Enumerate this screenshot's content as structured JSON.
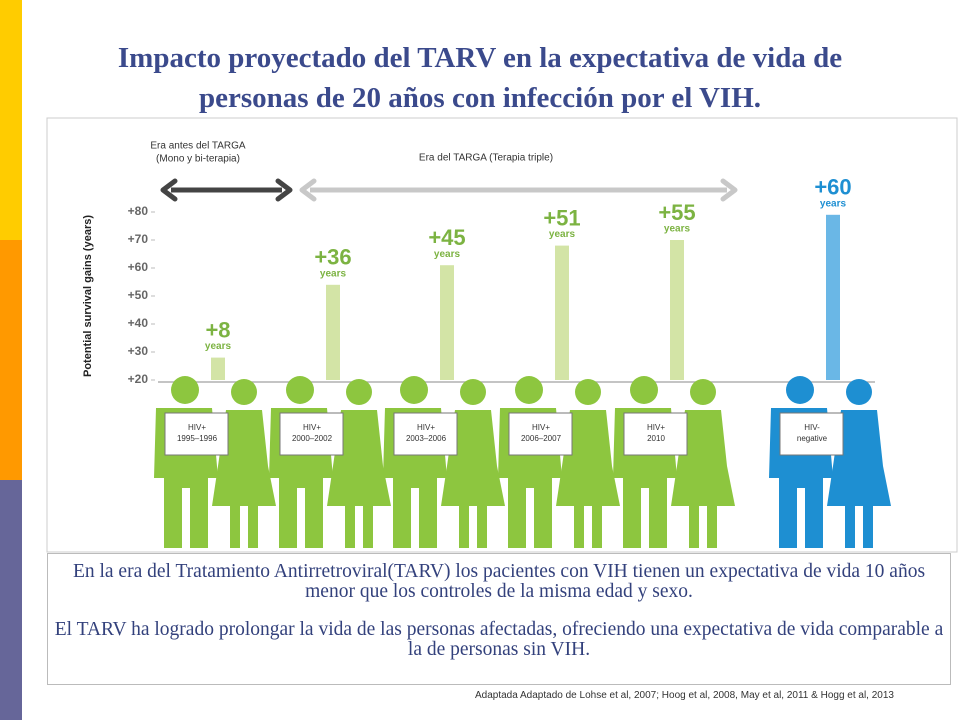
{
  "slide_title": [
    "Impacto proyectado del TARV en la expectativa de vida de",
    "personas de 20 años con infección por el VIH."
  ],
  "chart_data": {
    "type": "bar",
    "y_label": "Potential survival gains (years)",
    "eras": [
      {
        "label": [
          "Era antes del TARGA",
          "(Mono y bi-terapia)"
        ],
        "color": "#444444"
      },
      {
        "label": [
          "Era del TARGA (Terapia triple)"
        ],
        "color": "#c8c8c8"
      }
    ],
    "categories": [
      [
        "HIV+",
        "1995–1996"
      ],
      [
        "HIV+",
        "2000–2002"
      ],
      [
        "HIV+",
        "2003–2006"
      ],
      [
        "HIV+",
        "2006–2007"
      ],
      [
        "HIV+",
        "2010"
      ],
      [
        "HIV-",
        "negative"
      ]
    ],
    "values": [
      28,
      54,
      61,
      68,
      70,
      79
    ],
    "annotations": [
      [
        "+8",
        "years"
      ],
      [
        "+36",
        "years"
      ],
      [
        "+45",
        "years"
      ],
      [
        "+51",
        "years"
      ],
      [
        "+55",
        "years"
      ],
      [
        "+60",
        "years"
      ]
    ],
    "colors": [
      "#d3e4a6",
      "#d3e4a6",
      "#d3e4a6",
      "#d3e4a6",
      "#d3e4a6",
      "#6ab7e6"
    ],
    "figure_colors": [
      "#8dc63f",
      "#8dc63f",
      "#8dc63f",
      "#8dc63f",
      "#8dc63f",
      "#1e8fd2"
    ],
    "label_colors": [
      "#7cb342",
      "#7cb342",
      "#7cb342",
      "#7cb342",
      "#7cb342",
      "#1e8fd2"
    ],
    "ylim": [
      20,
      80
    ],
    "yticks": [
      {
        "value": 20,
        "label": "+20"
      },
      {
        "value": 30,
        "label": "+30"
      },
      {
        "value": 40,
        "label": "+40"
      },
      {
        "value": 50,
        "label": "+50"
      },
      {
        "value": 60,
        "label": "+60"
      },
      {
        "value": 70,
        "label": "+70"
      },
      {
        "value": 80,
        "label": "+80"
      }
    ],
    "grid": false
  },
  "notes": [
    "En la era del Tratamiento Antirretroviral(TARV) los pacientes con VIH tienen un expectativa de vida 10 años menor que los controles de la misma edad y sexo.",
    "El TARV ha logrado prolongar la vida de las personas afectadas, ofreciendo una expectativa de vida comparable a la de personas sin VIH."
  ],
  "citation": "Adaptada Adaptado de Lohse et al, 2007; Hoog et al, 2008, May et al, 2011 & Hogg et al, 2013"
}
